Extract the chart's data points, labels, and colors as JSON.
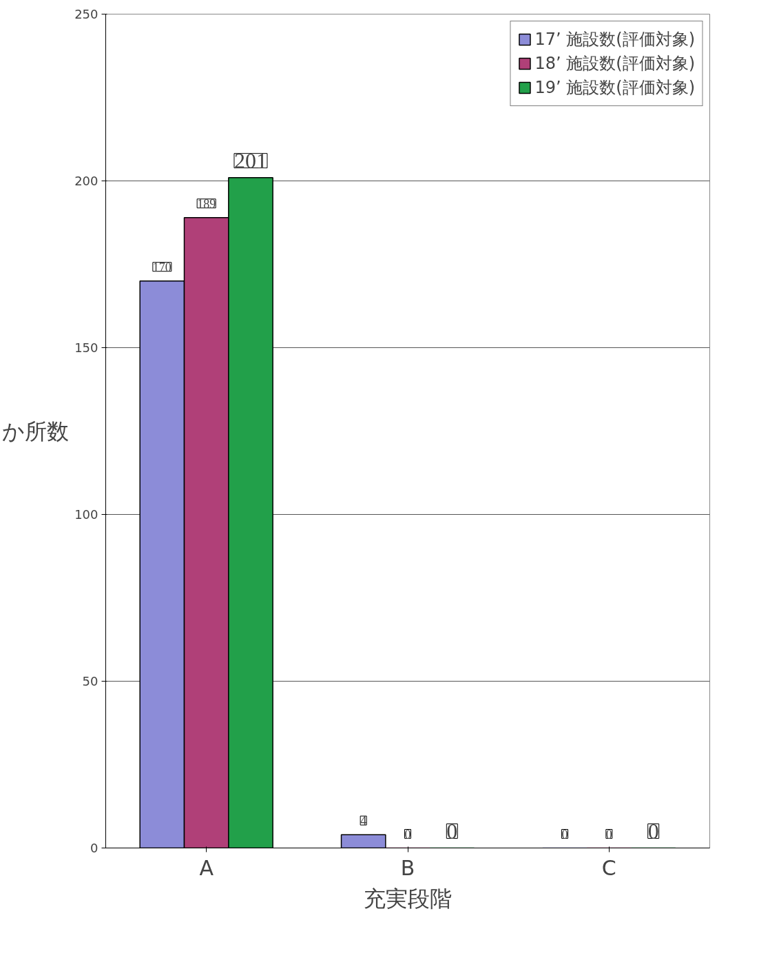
{
  "chart_data": {
    "type": "bar",
    "xlabel": "充実段階",
    "ylabel": "か所数",
    "categories": [
      "A",
      "B",
      "C"
    ],
    "series": [
      {
        "name": "17’ 施設数(評価対象)",
        "color": "#8c8cd8",
        "values": [
          170,
          4,
          0
        ]
      },
      {
        "name": "18’ 施設数(評価対象)",
        "color": "#b04078",
        "values": [
          189,
          0,
          0
        ]
      },
      {
        "name": "19’ 施設数(評価対象)",
        "color": "#22a04a",
        "values": [
          201,
          0,
          0
        ]
      }
    ],
    "ylim": [
      0,
      250
    ],
    "yticks": [
      0,
      50,
      100,
      150,
      200,
      250
    ],
    "grid": "y",
    "legend": "top right",
    "data_labels": true
  }
}
